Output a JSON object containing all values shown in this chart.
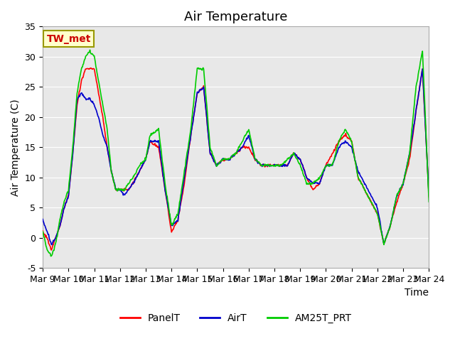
{
  "title": "Air Temperature",
  "ylabel": "Air Temperature (C)",
  "xlabel": "Time",
  "ylim": [
    -5,
    35
  ],
  "xlim": [
    0,
    360
  ],
  "x_tick_labels": [
    "Mar 9",
    "Mar 10",
    "Mar 11",
    "Mar 12",
    "Mar 13",
    "Mar 14",
    "Mar 15",
    "Mar 16",
    "Mar 17",
    "Mar 18",
    "Mar 19",
    "Mar 20",
    "Mar 21",
    "Mar 22",
    "Mar 23",
    "Mar 24"
  ],
  "x_tick_positions": [
    0,
    24,
    48,
    72,
    96,
    120,
    144,
    168,
    192,
    216,
    240,
    264,
    288,
    312,
    336,
    360
  ],
  "y_ticks": [
    -5,
    0,
    5,
    10,
    15,
    20,
    25,
    30,
    35
  ],
  "legend_labels": [
    "PanelT",
    "AirT",
    "AM25T_PRT"
  ],
  "legend_colors": [
    "#ff0000",
    "#0000cc",
    "#00cc00"
  ],
  "site_label": "TW_met",
  "site_label_color": "#cc0000",
  "site_box_facecolor": "#ffffcc",
  "site_box_edgecolor": "#999900",
  "background_color": "#e8e8e8",
  "grid_color": "#ffffff",
  "title_fontsize": 13,
  "axis_label_fontsize": 10,
  "tick_fontsize": 9,
  "line_width": 1.2,
  "ctrl_t": [
    0,
    4,
    8,
    12,
    16,
    20,
    24,
    28,
    32,
    36,
    40,
    44,
    48,
    52,
    56,
    60,
    64,
    68,
    72,
    76,
    80,
    84,
    90,
    96,
    100,
    108,
    114,
    120,
    126,
    132,
    138,
    144,
    150,
    156,
    162,
    168,
    174,
    180,
    186,
    192,
    198,
    204,
    210,
    216,
    222,
    228,
    234,
    240,
    246,
    252,
    258,
    264,
    270,
    276,
    282,
    288,
    294,
    300,
    306,
    312,
    318,
    324,
    330,
    336,
    342,
    348,
    354,
    360
  ],
  "panel_v": [
    1,
    0,
    -2,
    0,
    2,
    5,
    7,
    14,
    22,
    26,
    28,
    28,
    28,
    24,
    20,
    15,
    11,
    8,
    8,
    8,
    8,
    9,
    11,
    13,
    16,
    15,
    8,
    1,
    3,
    9,
    17,
    24,
    25,
    14,
    12,
    13,
    13,
    14,
    15,
    15,
    13,
    12,
    12,
    12,
    12,
    12,
    14,
    13,
    10,
    8,
    9,
    12,
    14,
    16,
    17,
    16,
    10,
    8,
    6,
    4,
    -1,
    2,
    6,
    9,
    13,
    21,
    28,
    7
  ],
  "air_v": [
    3,
    1,
    -1,
    0,
    2,
    5,
    7,
    14,
    23,
    24,
    23,
    23,
    22,
    20,
    17,
    15,
    11,
    8,
    8,
    7,
    8,
    9,
    11,
    13,
    16,
    16,
    8,
    2,
    3,
    10,
    17,
    24,
    25,
    14,
    12,
    13,
    13,
    14,
    15,
    17,
    13,
    12,
    12,
    12,
    12,
    12,
    14,
    13,
    10,
    9,
    9,
    12,
    12,
    15,
    16,
    15,
    11,
    9,
    7,
    5,
    -1,
    2,
    7,
    9,
    14,
    21,
    28,
    7
  ],
  "am25_v": [
    1,
    -2,
    -3,
    -1,
    3,
    6,
    8,
    15,
    24,
    28,
    30,
    31,
    30,
    26,
    22,
    18,
    11,
    8,
    8,
    8,
    9,
    10,
    12,
    13,
    17,
    18,
    9,
    2,
    4,
    11,
    18,
    28,
    28,
    15,
    12,
    13,
    13,
    14,
    16,
    18,
    13,
    12,
    12,
    12,
    12,
    13,
    14,
    12,
    9,
    9,
    10,
    12,
    12,
    16,
    18,
    16,
    10,
    8,
    6,
    4,
    -1,
    2,
    7,
    9,
    14,
    25,
    31,
    6
  ]
}
